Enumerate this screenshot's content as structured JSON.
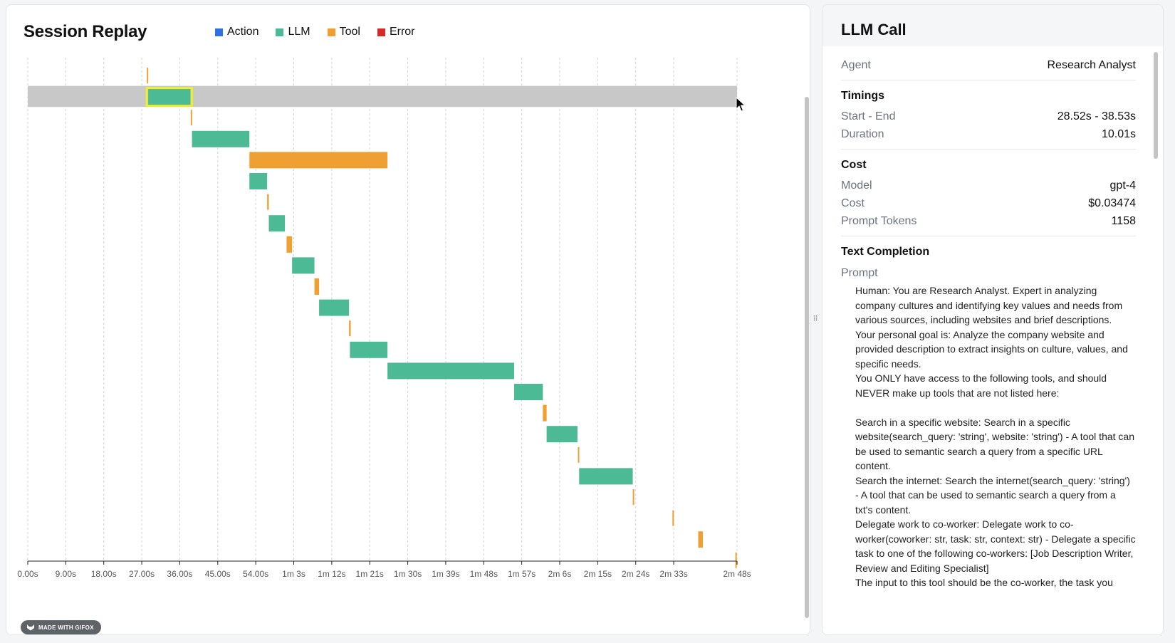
{
  "header": {
    "title": "Session Replay"
  },
  "legend": [
    {
      "label": "Action",
      "color": "#2f6fe4"
    },
    {
      "label": "LLM",
      "color": "#4cba95"
    },
    {
      "label": "Tool",
      "color": "#f0a033"
    },
    {
      "label": "Error",
      "color": "#d62a2a"
    }
  ],
  "watermark": "MADE WITH GIFOX",
  "chart_data": {
    "type": "gantt",
    "x_unit": "seconds",
    "xlim": [
      0,
      168
    ],
    "tick_values": [
      0,
      9,
      18,
      27,
      36,
      45,
      54,
      63,
      72,
      81,
      90,
      99,
      108,
      117,
      126,
      135,
      144,
      153,
      168
    ],
    "tick_labels": [
      "0.00s",
      "9.00s",
      "18.00s",
      "27.00s",
      "36.00s",
      "45.00s",
      "54.00s",
      "1m 3s",
      "1m 12s",
      "1m 21s",
      "1m 30s",
      "1m 39s",
      "1m 48s",
      "1m 57s",
      "2m 6s",
      "2m 15s",
      "2m 24s",
      "2m 33s",
      "2m 48s"
    ],
    "grid": "vertical-dashed",
    "selected_index": 1,
    "events": [
      {
        "type": "Tool",
        "start": 28.2,
        "end": 28.5
      },
      {
        "type": "LLM",
        "start": 28.52,
        "end": 38.53
      },
      {
        "type": "Tool",
        "start": 38.6,
        "end": 38.9
      },
      {
        "type": "LLM",
        "start": 38.9,
        "end": 52.5
      },
      {
        "type": "Tool",
        "start": 52.5,
        "end": 85.2
      },
      {
        "type": "LLM",
        "start": 52.5,
        "end": 56.7
      },
      {
        "type": "Tool",
        "start": 56.7,
        "end": 57.1
      },
      {
        "type": "LLM",
        "start": 57.1,
        "end": 60.9
      },
      {
        "type": "Tool",
        "start": 61.3,
        "end": 62.6
      },
      {
        "type": "LLM",
        "start": 62.6,
        "end": 67.9
      },
      {
        "type": "Tool",
        "start": 67.9,
        "end": 69.0
      },
      {
        "type": "LLM",
        "start": 69.0,
        "end": 76.1
      },
      {
        "type": "Tool",
        "start": 76.1,
        "end": 76.5
      },
      {
        "type": "LLM",
        "start": 76.3,
        "end": 85.2
      },
      {
        "type": "LLM",
        "start": 85.2,
        "end": 115.2
      },
      {
        "type": "LLM",
        "start": 115.2,
        "end": 122.0
      },
      {
        "type": "Tool",
        "start": 122.0,
        "end": 122.9
      },
      {
        "type": "LLM",
        "start": 122.9,
        "end": 130.2
      },
      {
        "type": "Tool",
        "start": 130.3,
        "end": 130.6
      },
      {
        "type": "LLM",
        "start": 130.6,
        "end": 143.3
      },
      {
        "type": "Tool",
        "start": 143.3,
        "end": 143.6
      },
      {
        "type": "Tool",
        "start": 152.7,
        "end": 153.0
      },
      {
        "type": "Tool",
        "start": 158.8,
        "end": 159.9
      },
      {
        "type": "Tool",
        "start": 167.6,
        "end": 167.9
      }
    ]
  },
  "detail": {
    "title": "LLM Call",
    "agent_label": "Agent",
    "agent_value": "Research Analyst",
    "timings_title": "Timings",
    "start_end_label": "Start - End",
    "start_end_value": "28.52s - 38.53s",
    "duration_label": "Duration",
    "duration_value": "10.01s",
    "cost_title": "Cost",
    "model_label": "Model",
    "model_value": "gpt-4",
    "cost_label": "Cost",
    "cost_value": "$0.03474",
    "tokens_label": "Prompt Tokens",
    "tokens_value": "1158",
    "completion_title": "Text Completion",
    "prompt_label": "Prompt",
    "prompt_text": "Human: You are Research Analyst. Expert in analyzing company cultures and identifying key values and needs from various sources, including websites and brief descriptions.\nYour personal goal is: Analyze the company website and provided description to extract insights on culture, values, and specific needs.\nYou ONLY have access to the following tools, and should NEVER make up tools that are not listed here:\n\nSearch in a specific website: Search in a specific website(search_query: 'string', website: 'string') - A tool that can be used to semantic search a query from a specific URL content.\nSearch the internet: Search the internet(search_query: 'string') - A tool that can be used to semantic search a query from a txt's content.\nDelegate work to co-worker: Delegate work to co-worker(coworker: str, task: str, context: str) - Delegate a specific task to one of the following co-workers: [Job Description Writer, Review and Editing Specialist]\nThe input to this tool should be the co-worker, the task you"
  }
}
